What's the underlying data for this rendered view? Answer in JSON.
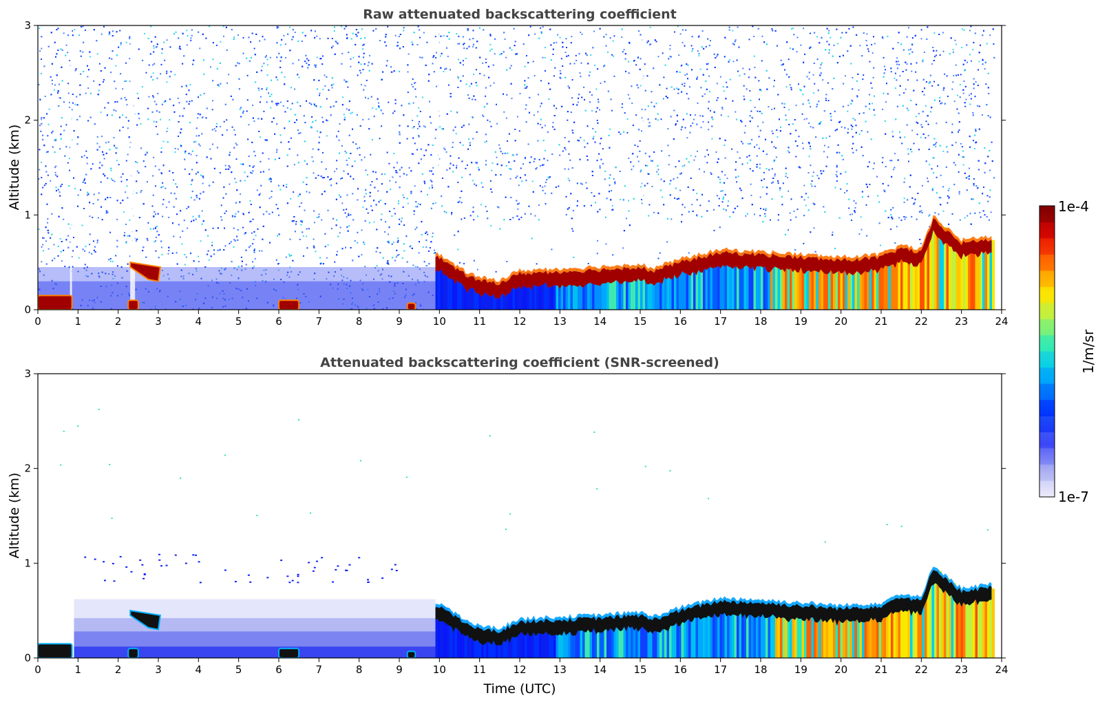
{
  "chart_data": [
    {
      "type": "heatmap",
      "title": "Raw attenuated backscattering coefficient",
      "xlabel": "",
      "ylabel": "Altitude (km)",
      "xlim": [
        0,
        24
      ],
      "ylim": [
        0,
        3
      ],
      "x_ticks": [
        "0",
        "1",
        "2",
        "3",
        "4",
        "5",
        "6",
        "7",
        "8",
        "9",
        "10",
        "11",
        "12",
        "13",
        "14",
        "15",
        "16",
        "17",
        "18",
        "19",
        "20",
        "21",
        "22",
        "23",
        "24"
      ],
      "y_ticks": [
        "0",
        "1",
        "2",
        "3"
      ],
      "data_end_time": 23.8,
      "layer_top_km_by_hour": [
        [
          0.0,
          0.15
        ],
        [
          0.8,
          0.15
        ],
        [
          2.3,
          0.5
        ],
        [
          3.0,
          0.4
        ],
        [
          10.0,
          0.55
        ],
        [
          10.5,
          0.4
        ],
        [
          11.0,
          0.3
        ],
        [
          11.5,
          0.28
        ],
        [
          12.0,
          0.38
        ],
        [
          13.0,
          0.4
        ],
        [
          14.0,
          0.42
        ],
        [
          15.0,
          0.45
        ],
        [
          15.3,
          0.4
        ],
        [
          16.0,
          0.5
        ],
        [
          17.0,
          0.6
        ],
        [
          18.0,
          0.58
        ],
        [
          19.0,
          0.55
        ],
        [
          20.0,
          0.52
        ],
        [
          21.0,
          0.55
        ],
        [
          21.5,
          0.65
        ],
        [
          22.0,
          0.6
        ],
        [
          22.3,
          0.95
        ],
        [
          23.0,
          0.7
        ],
        [
          23.8,
          0.75
        ]
      ]
    },
    {
      "type": "heatmap",
      "title": "Attenuated backscattering coefficient (SNR-screened)",
      "xlabel": "Time (UTC)",
      "ylabel": "Altitude (km)",
      "xlim": [
        0,
        24
      ],
      "ylim": [
        0,
        3
      ],
      "x_ticks": [
        "0",
        "1",
        "2",
        "3",
        "4",
        "5",
        "6",
        "7",
        "8",
        "9",
        "10",
        "11",
        "12",
        "13",
        "14",
        "15",
        "16",
        "17",
        "18",
        "19",
        "20",
        "21",
        "22",
        "23",
        "24"
      ],
      "y_ticks": [
        "0",
        "1",
        "2",
        "3"
      ],
      "data_end_time": 23.8
    }
  ],
  "colorbar": {
    "label": "1/m/sr",
    "max_label": "1e-4",
    "min_label": "1e-7",
    "colors": [
      "#e8e8fb",
      "#c4c6f4",
      "#9a9ef0",
      "#6d72f0",
      "#2f3df3",
      "#0010ff",
      "#0050ff",
      "#0090ff",
      "#00c8f0",
      "#20e8c0",
      "#70f080",
      "#c0f040",
      "#f8e800",
      "#ffb000",
      "#ff6000",
      "#f02000",
      "#c00000",
      "#800000"
    ]
  }
}
